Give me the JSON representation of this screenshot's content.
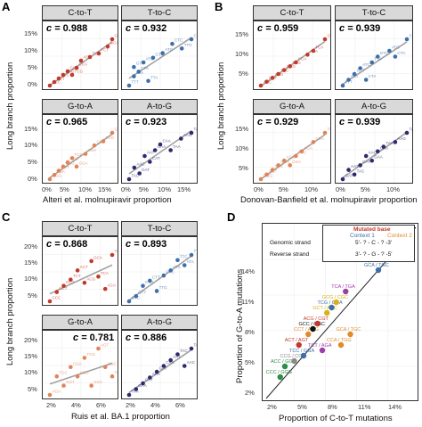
{
  "panels": {
    "A": {
      "letter": "A",
      "xlabel": "Alteri et al. molnupiravir proportion",
      "ylabel": "Long branch proportion"
    },
    "B": {
      "letter": "B",
      "xlabel": "Donovan-Banfield et al. molnupiravir proportion",
      "ylabel": "Long branch proportion"
    },
    "C": {
      "letter": "C",
      "xlabel": "Ruis et al. BA.1 proportion",
      "ylabel": "Long branch proportion"
    },
    "D": {
      "letter": "D",
      "xlabel": "Proportion of C-to-T mutations",
      "ylabel": "Proportion of G-to-A mutations"
    }
  },
  "facet_labels": {
    "ct": "C-to-T",
    "tc": "T-to-C",
    "ga": "G-to-A",
    "ag": "A-to-G"
  },
  "corr_prefix": "c =",
  "correlations": {
    "A": {
      "ct": "0.988",
      "tc": "0.932",
      "ga": "0.965",
      "ag": "0.923"
    },
    "B": {
      "ct": "0.959",
      "tc": "0.939",
      "ga": "0.929",
      "ag": "0.939"
    },
    "C": {
      "ct": "0.868",
      "tc": "0.893",
      "ga": "0.781",
      "ag": "0.886"
    }
  },
  "ticks": {
    "A_y": [
      "15%",
      "10%",
      "5%",
      "0%"
    ],
    "A_x": [
      "0%",
      "5%",
      "10%",
      "15%"
    ],
    "B_y": [
      "15%",
      "10%",
      "5%"
    ],
    "B_x": [
      "0%",
      "5%",
      "10%"
    ],
    "C_y": [
      "20%",
      "15%",
      "10%",
      "5%"
    ],
    "C_x": [
      "2%",
      "4%",
      "6%"
    ],
    "D_y": [
      "14%",
      "11%",
      "8%",
      "5%",
      "2%"
    ],
    "D_x": [
      "2%",
      "5%",
      "8%",
      "11%",
      "14%"
    ]
  },
  "legend": {
    "title": "Mutated base",
    "genomic": "Genomic strand",
    "reverse": "Reverse strand",
    "context1": "Context 1",
    "context2": "Context 2",
    "motif_top": "5'- ? - C - ? -3'",
    "motif_bottom": "3'- ? - G - ? -5'"
  },
  "colors": {
    "ct": "#c0392b",
    "tc": "#3d6fa8",
    "ga": "#e0845a",
    "ag": "#2e2a6e",
    "fit": "#8a8a8a",
    "diag": "#222222"
  },
  "chart_data": [
    {
      "panel": "A",
      "type": "scatter",
      "facet": "C-to-T",
      "xlim": [
        0,
        0.17
      ],
      "ylim": [
        0,
        0.17
      ],
      "x": [
        0.01,
        0.02,
        0.03,
        0.04,
        0.05,
        0.06,
        0.07,
        0.08,
        0.1,
        0.12,
        0.14,
        0.15
      ],
      "y": [
        0.02,
        0.03,
        0.04,
        0.05,
        0.06,
        0.05,
        0.07,
        0.09,
        0.1,
        0.11,
        0.13,
        0.15
      ],
      "labels": [
        "ACC",
        "CCT",
        "TCC",
        "ACG",
        "GCG",
        "TCG",
        "CCA",
        "ACA",
        "TCA",
        "TCT",
        "GCA",
        "GCA"
      ]
    },
    {
      "panel": "A",
      "type": "scatter",
      "facet": "T-to-C",
      "x": [
        0.01,
        0.02,
        0.02,
        0.03,
        0.04,
        0.05,
        0.06,
        0.08,
        0.1,
        0.12,
        0.14
      ],
      "y": [
        0.03,
        0.05,
        0.07,
        0.06,
        0.08,
        0.04,
        0.09,
        0.1,
        0.12,
        0.11,
        0.13
      ],
      "labels": [
        "TTT",
        "ATA",
        "GTT",
        "CTA",
        "ATC",
        "TTA",
        "GTC",
        "ATG",
        "CTC",
        "TTG",
        "CTG"
      ]
    },
    {
      "panel": "A",
      "type": "scatter",
      "facet": "G-to-A",
      "x": [
        0.01,
        0.02,
        0.03,
        0.04,
        0.05,
        0.06,
        0.07,
        0.09,
        0.11,
        0.13,
        0.15
      ],
      "y": [
        0.02,
        0.03,
        0.04,
        0.05,
        0.06,
        0.07,
        0.05,
        0.08,
        0.1,
        0.11,
        0.13
      ],
      "labels": [
        "GGG",
        "TGA",
        "AGT",
        "CGG",
        "AGC",
        "TGC",
        "GGA",
        "AGA",
        "CGA",
        "TGG",
        "GGT"
      ]
    },
    {
      "panel": "A",
      "type": "scatter",
      "facet": "A-to-G",
      "x": [
        0.01,
        0.02,
        0.03,
        0.04,
        0.05,
        0.06,
        0.07,
        0.09,
        0.11,
        0.13
      ],
      "y": [
        0.02,
        0.04,
        0.03,
        0.06,
        0.05,
        0.07,
        0.08,
        0.07,
        0.09,
        0.1
      ],
      "labels": [
        "TAC",
        "AAC",
        "GAT",
        "AAT",
        "CAT",
        "GAA",
        "CAA",
        "TAA",
        "AAG",
        "TAG"
      ]
    },
    {
      "panel": "B",
      "type": "scatter",
      "facet": "C-to-T",
      "x": [
        0.01,
        0.02,
        0.03,
        0.04,
        0.05,
        0.06,
        0.07,
        0.09,
        0.1,
        0.12
      ],
      "y": [
        0.02,
        0.03,
        0.04,
        0.05,
        0.06,
        0.07,
        0.08,
        0.1,
        0.11,
        0.14
      ],
      "labels": [
        "ACC",
        "CCT",
        "ACG",
        "TCC",
        "GCG",
        "TCG",
        "CCA",
        "ACA",
        "TCA",
        "GCA"
      ]
    },
    {
      "panel": "B",
      "type": "scatter",
      "facet": "T-to-C",
      "x": [
        0.01,
        0.02,
        0.03,
        0.04,
        0.05,
        0.06,
        0.07,
        0.09,
        0.1,
        0.12
      ],
      "y": [
        0.04,
        0.05,
        0.06,
        0.07,
        0.05,
        0.08,
        0.09,
        0.1,
        0.09,
        0.12
      ],
      "labels": [
        "TTT",
        "ATA",
        "GTT",
        "ATC",
        "CTA",
        "TTA",
        "GTC",
        "ATG",
        "CTC",
        "CTG"
      ]
    },
    {
      "panel": "B",
      "type": "scatter",
      "facet": "G-to-A",
      "x": [
        0.01,
        0.02,
        0.03,
        0.04,
        0.05,
        0.06,
        0.07,
        0.08,
        0.1,
        0.12
      ],
      "y": [
        0.02,
        0.03,
        0.04,
        0.05,
        0.06,
        0.05,
        0.07,
        0.08,
        0.1,
        0.12
      ],
      "labels": [
        "GGG",
        "AGT",
        "TGA",
        "CGG",
        "AGC",
        "GGA",
        "TGC",
        "AGA",
        "CGA",
        "TGG"
      ]
    },
    {
      "panel": "B",
      "type": "scatter",
      "facet": "A-to-G",
      "x": [
        0.01,
        0.02,
        0.03,
        0.04,
        0.05,
        0.06,
        0.07,
        0.08,
        0.1,
        0.12
      ],
      "y": [
        0.03,
        0.05,
        0.04,
        0.06,
        0.08,
        0.07,
        0.09,
        0.1,
        0.11,
        0.13
      ],
      "labels": [
        "GAT",
        "AAT",
        "TAC",
        "CAT",
        "AAC",
        "GAA",
        "CAA",
        "TAA",
        "AAG",
        "TAG"
      ]
    },
    {
      "panel": "C",
      "type": "scatter",
      "facet": "C-to-T",
      "xlim": [
        0.01,
        0.07
      ],
      "ylim": [
        0.02,
        0.22
      ],
      "x": [
        0.015,
        0.02,
        0.025,
        0.03,
        0.035,
        0.04,
        0.045,
        0.05,
        0.055,
        0.06
      ],
      "y": [
        0.05,
        0.08,
        0.1,
        0.12,
        0.15,
        0.11,
        0.18,
        0.13,
        0.09,
        0.2
      ],
      "labels": [
        "CCC",
        "CCT",
        "GCT",
        "TCT",
        "ACT",
        "ACG",
        "GCA",
        "TCA",
        "ACA",
        "TCG"
      ]
    },
    {
      "panel": "C",
      "type": "scatter",
      "facet": "T-to-C",
      "x": [
        0.015,
        0.02,
        0.025,
        0.03,
        0.035,
        0.04,
        0.045,
        0.05,
        0.055,
        0.06
      ],
      "y": [
        0.06,
        0.07,
        0.09,
        0.1,
        0.08,
        0.11,
        0.12,
        0.14,
        0.13,
        0.15
      ],
      "labels": [
        "GTC",
        "GTT",
        "CTG",
        "CTT",
        "TTG",
        "CTC",
        "ATC",
        "TTC",
        "ATA",
        "TTA"
      ]
    },
    {
      "panel": "C",
      "type": "scatter",
      "facet": "G-to-A",
      "x": [
        0.015,
        0.02,
        0.025,
        0.03,
        0.035,
        0.04,
        0.045,
        0.05,
        0.055,
        0.06
      ],
      "y": [
        0.05,
        0.07,
        0.06,
        0.08,
        0.07,
        0.09,
        0.06,
        0.1,
        0.08,
        0.07
      ],
      "labels": [
        "AGA",
        "TGC",
        "GGT",
        "CGA",
        "AGG",
        "TGG",
        "GGA",
        "AGT",
        "CGC",
        "TGA"
      ]
    },
    {
      "panel": "C",
      "type": "scatter",
      "facet": "A-to-G",
      "x": [
        0.015,
        0.02,
        0.025,
        0.03,
        0.035,
        0.04,
        0.045,
        0.05,
        0.055,
        0.06
      ],
      "y": [
        0.05,
        0.06,
        0.07,
        0.08,
        0.09,
        0.1,
        0.11,
        0.12,
        0.1,
        0.13
      ],
      "labels": [
        "TAA",
        "GAA",
        "CAT",
        "AAA",
        "GAT",
        "CAA",
        "AAT",
        "TAC",
        "AAC",
        "TAG"
      ]
    },
    {
      "panel": "D",
      "type": "scatter",
      "xlim": [
        0,
        0.16
      ],
      "ylim": [
        0,
        0.16
      ],
      "x": [
        0.015,
        0.02,
        0.03,
        0.035,
        0.04,
        0.045,
        0.05,
        0.055,
        0.06,
        0.065,
        0.07,
        0.075,
        0.08,
        0.085,
        0.09,
        0.11,
        0.12
      ],
      "y": [
        0.02,
        0.03,
        0.035,
        0.05,
        0.04,
        0.06,
        0.065,
        0.07,
        0.045,
        0.08,
        0.085,
        0.09,
        0.05,
        0.1,
        0.06,
        0.13,
        0.12
      ],
      "labels": [
        "CCC / GGG",
        "ACC / GGT",
        "CCG / CGG",
        "ACT / AGT",
        "TCC / GGA",
        "CCT / AGG",
        "GCC / GGC",
        "ACG / CGT",
        "TCT / AGA",
        "GCT / AGC",
        "TCG / CGA",
        "GCG / CGC",
        "CCA / TGG",
        "TCA / TGA",
        "GCA / TGC",
        "ACA / TGT",
        "GCA / TGC"
      ],
      "colors": [
        "#2d8c4a",
        "#2d8c4a",
        "#8a8a8a",
        "#c0392b",
        "#3d6fa8",
        "#e08a2a",
        "#111111",
        "#c0392b",
        "#9b3ea8",
        "#d8b11a",
        "#3d6fa8",
        "#d8b11a",
        "#e08a2a",
        "#9b3ea8",
        "#e08a2a",
        "#c0392b",
        "#3d6fa8"
      ]
    }
  ]
}
